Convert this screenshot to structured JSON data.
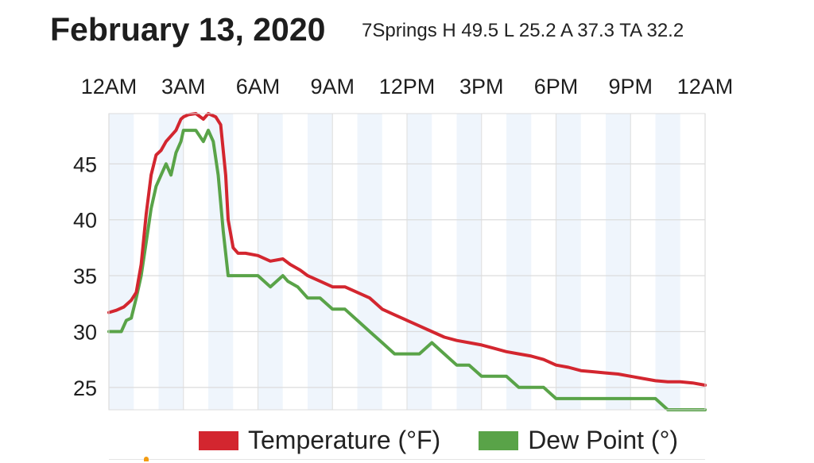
{
  "header": {
    "date": "February 13, 2020",
    "summary": "7Springs H 49.5 L 25.2 A 37.3 TA 32.2"
  },
  "legend": {
    "temperature_label": "Temperature (°F)",
    "dewpoint_label": "Dew Point (°)"
  },
  "chart_data": {
    "type": "line",
    "title": "",
    "xlabel": "",
    "ylabel": "",
    "x_unit": "hours since midnight",
    "x_ticks": [
      "12AM",
      "3AM",
      "6AM",
      "9AM",
      "12PM",
      "3PM",
      "6PM",
      "9PM",
      "12AM"
    ],
    "y_ticks": [
      25,
      30,
      35,
      40,
      45
    ],
    "xlim": [
      0,
      24
    ],
    "ylim": [
      23,
      49.5
    ],
    "grid": true,
    "shaded_hour_bands": true,
    "legend_position": "bottom",
    "series": [
      {
        "name": "Temperature (°F)",
        "color": "#d3262f",
        "x": [
          0,
          0.3,
          0.6,
          0.9,
          1.1,
          1.3,
          1.5,
          1.7,
          1.9,
          2.1,
          2.3,
          2.5,
          2.7,
          2.9,
          3.0,
          3.2,
          3.5,
          3.8,
          4.0,
          4.3,
          4.5,
          4.7,
          4.8,
          5.0,
          5.2,
          5.5,
          6.0,
          6.5,
          7.0,
          7.3,
          7.7,
          8.0,
          8.5,
          9.0,
          9.5,
          10.0,
          10.5,
          11.0,
          11.5,
          12.0,
          12.5,
          13.0,
          13.5,
          14.0,
          14.5,
          15.0,
          15.5,
          16.0,
          16.5,
          17.0,
          17.5,
          18.0,
          18.5,
          19.0,
          19.5,
          20.0,
          20.5,
          21.0,
          21.5,
          22.0,
          22.5,
          23.0,
          23.5,
          24.0
        ],
        "y": [
          31.7,
          31.9,
          32.2,
          32.8,
          33.5,
          36.0,
          40.5,
          44.0,
          45.8,
          46.2,
          47.0,
          47.5,
          48.0,
          49.0,
          49.2,
          49.4,
          49.5,
          49.0,
          49.5,
          49.2,
          48.5,
          44.0,
          40.0,
          37.5,
          37.0,
          37.0,
          36.8,
          36.3,
          36.5,
          36.0,
          35.5,
          35.0,
          34.5,
          34.0,
          34.0,
          33.5,
          33.0,
          32.0,
          31.5,
          31.0,
          30.5,
          30.0,
          29.5,
          29.2,
          29.0,
          28.8,
          28.5,
          28.2,
          28.0,
          27.8,
          27.5,
          27.0,
          26.8,
          26.5,
          26.4,
          26.3,
          26.2,
          26.0,
          25.8,
          25.6,
          25.5,
          25.5,
          25.4,
          25.2
        ]
      },
      {
        "name": "Dew Point (°)",
        "color": "#59a348",
        "x": [
          0,
          0.5,
          0.7,
          0.9,
          1.1,
          1.3,
          1.5,
          1.7,
          1.9,
          2.1,
          2.3,
          2.5,
          2.7,
          2.9,
          3.0,
          3.2,
          3.5,
          3.8,
          4.0,
          4.2,
          4.4,
          4.6,
          4.8,
          5.0,
          6.0,
          6.5,
          7.0,
          7.2,
          7.6,
          8.0,
          8.5,
          9.0,
          9.5,
          10.0,
          10.5,
          11.0,
          11.5,
          12.0,
          12.5,
          13.0,
          13.5,
          14.0,
          14.5,
          15.0,
          15.5,
          16.0,
          16.5,
          17.0,
          17.5,
          18.0,
          19.0,
          20.0,
          21.0,
          21.5,
          22.0,
          22.5,
          23.0,
          23.5,
          24.0
        ],
        "y": [
          30,
          30,
          31,
          31.2,
          33,
          35,
          38,
          41,
          43,
          44,
          45,
          44,
          46,
          47,
          48,
          48,
          48,
          47,
          48,
          47,
          44,
          39,
          35,
          35,
          35,
          34,
          35,
          34.5,
          34,
          33,
          33,
          32,
          32,
          31,
          30,
          29,
          28,
          28,
          28,
          29,
          28,
          27,
          27,
          26,
          26,
          26,
          25,
          25,
          25,
          24,
          24,
          24,
          24,
          24,
          24,
          23,
          23,
          23,
          23
        ]
      }
    ]
  }
}
